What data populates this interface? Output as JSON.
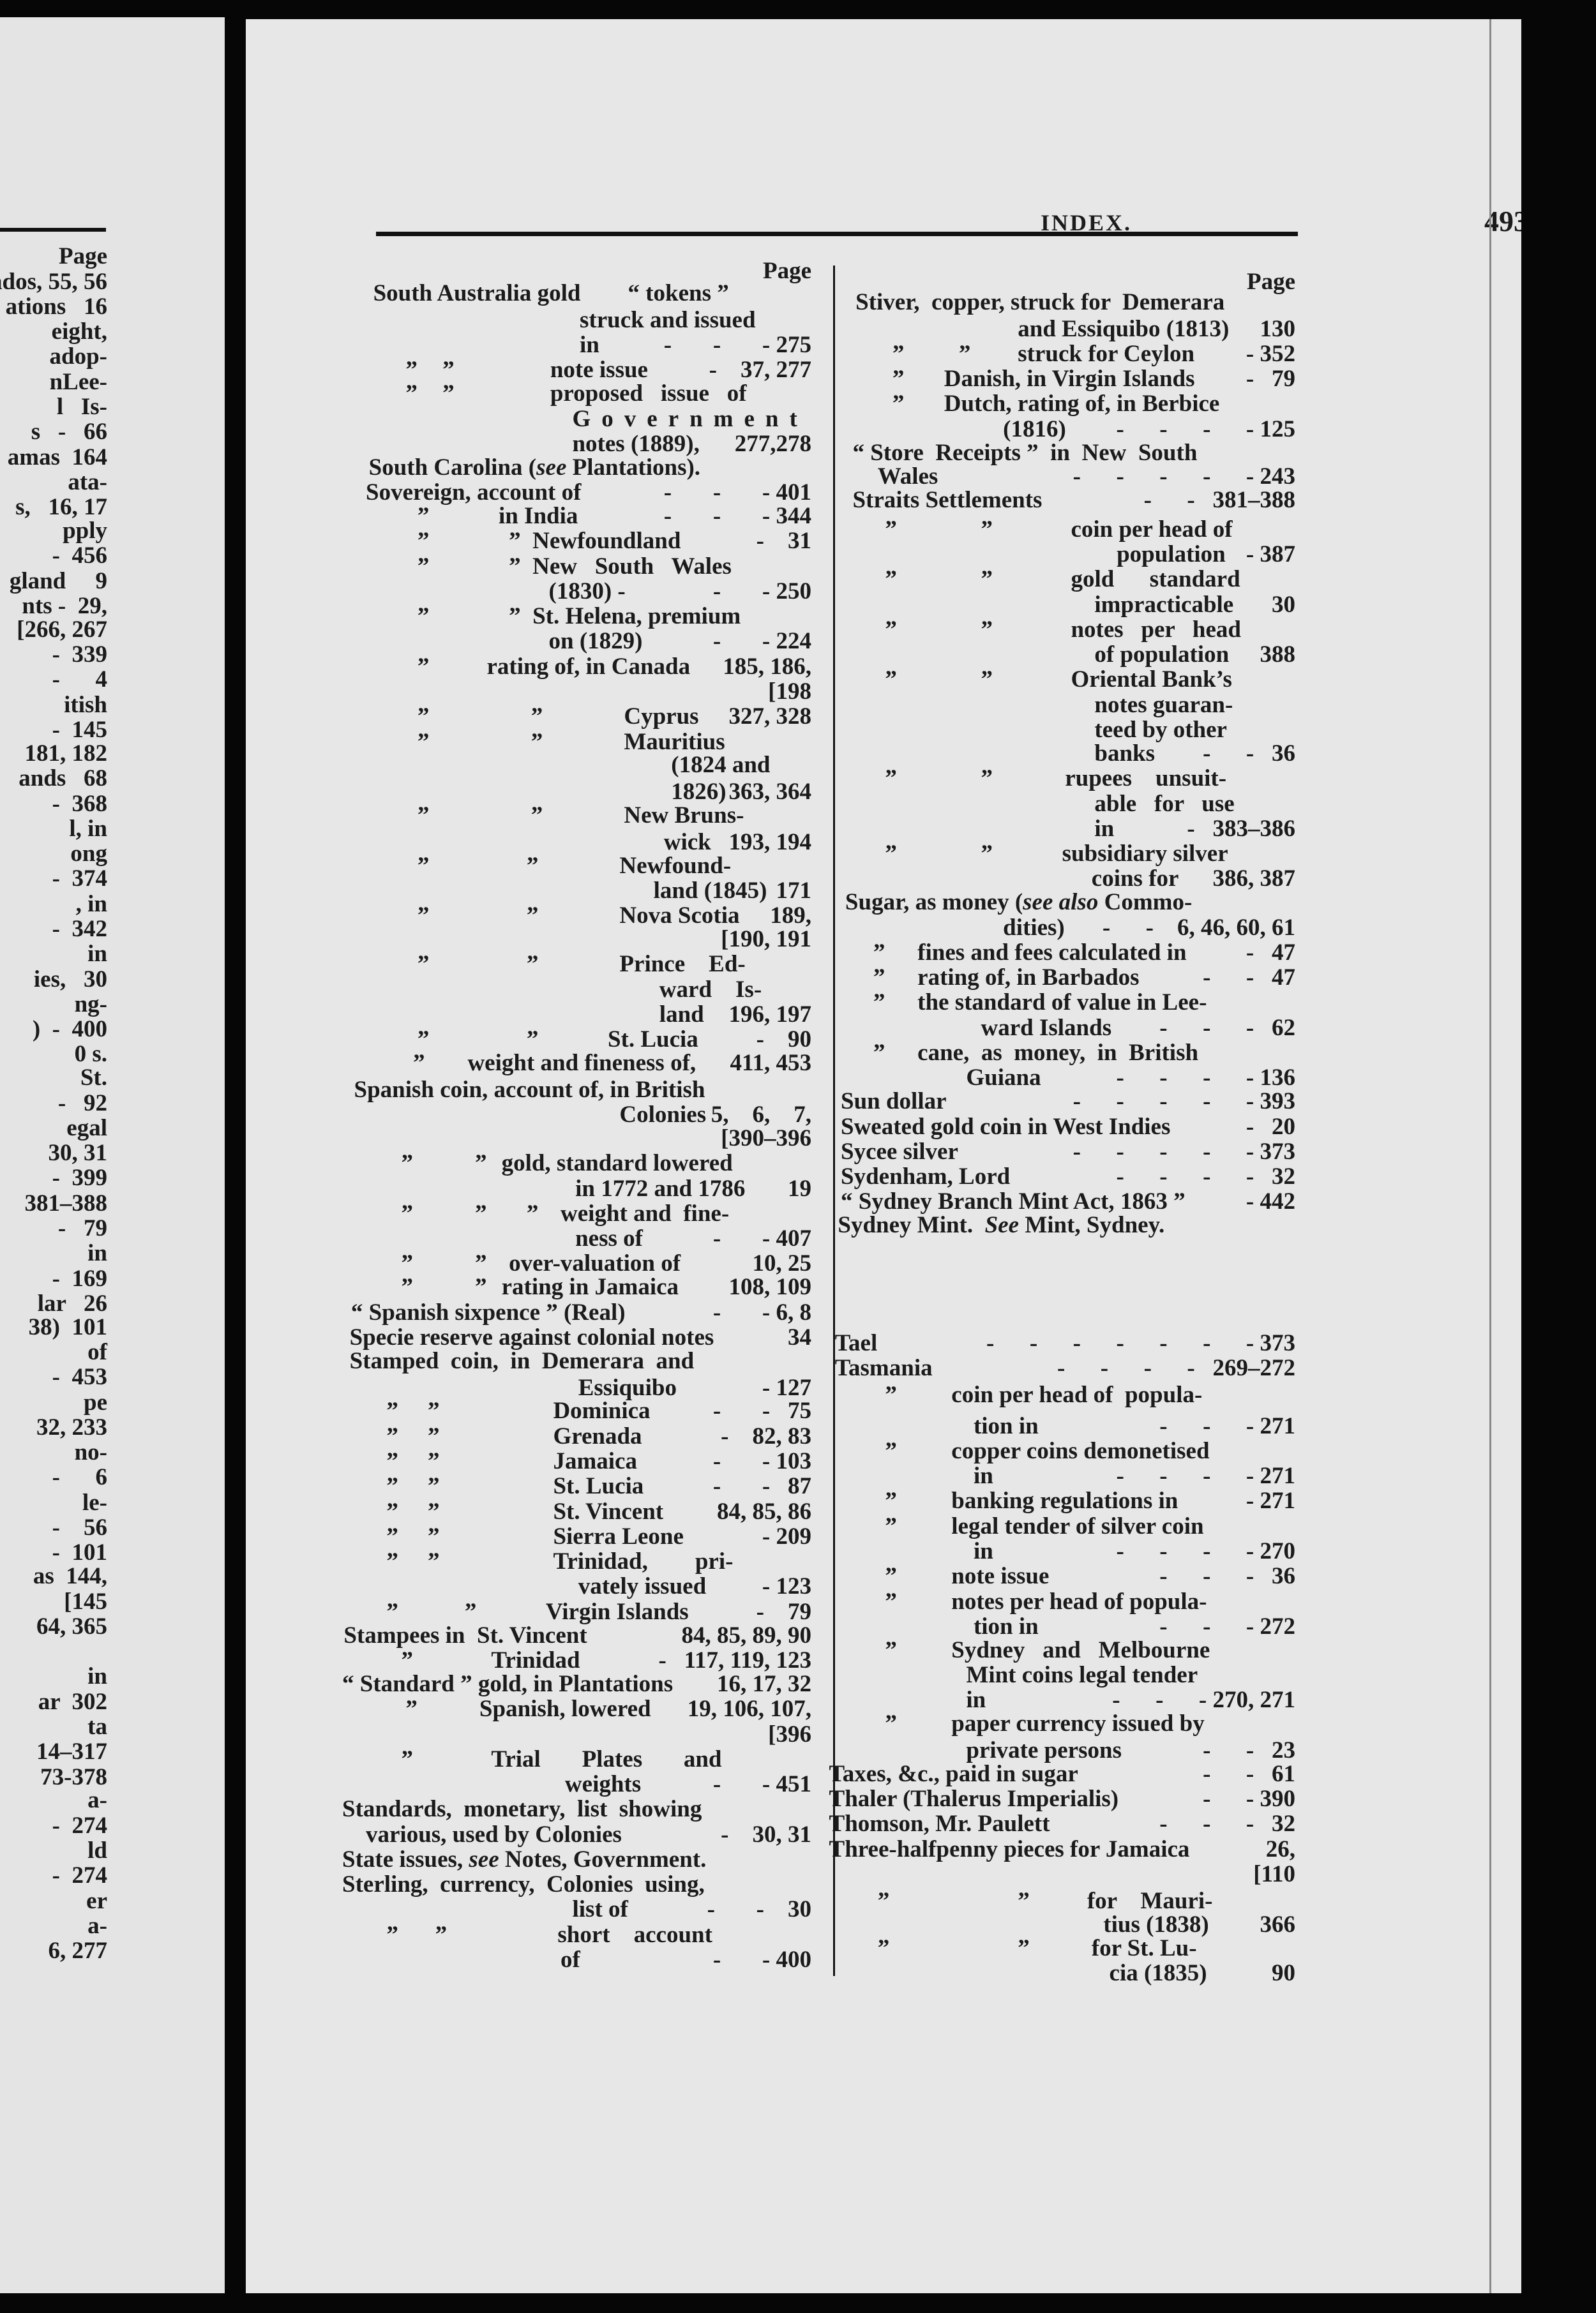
{
  "header": {
    "title": "INDEX.",
    "page_number": "493"
  },
  "left_page_fragment": {
    "lines": [
      "Page",
      "ados, 55, 56",
      "ations   16",
      "eight,",
      "adop-",
      "nLee-",
      "l   Is-",
      "s   -   66",
      "amas  164",
      "ata-",
      "s,   16, 17",
      "pply",
      "-  456",
      "gland     9",
      "nts -  29,",
      "[266, 267",
      "-  339",
      "-      4",
      "itish",
      "-  145",
      " 181, 182",
      "ands   68",
      "-  368",
      "l, in",
      "ong",
      "-  374",
      ", in",
      "-  342",
      "in",
      "ies,   30",
      "ng-",
      ")  -  400",
      "0 s.",
      "St.",
      "-   92",
      "egal",
      "30, 31",
      "-  399",
      "381–388",
      "-   79",
      "in",
      "-  169",
      "lar   26",
      "38)  101",
      "of",
      "-  453",
      "pe",
      "32, 233",
      "no-",
      "-      6",
      "le-",
      "-    56",
      "-  101",
      "as  144,",
      "[145",
      "64, 365",
      "in",
      "ar  302",
      "ta",
      "14–317",
      "73-378",
      "a-",
      "-  274",
      "ld",
      "-  274",
      "er",
      "a-",
      "6, 277"
    ]
  },
  "left_column": {
    "lines": [
      {
        "page": "Page"
      },
      {
        "text": "South Australia gold        “ tokens ”"
      },
      {
        "text": "struck and issued"
      },
      {
        "text": "in",
        "page": "-       -       - 275"
      },
      {
        "dittos": [
          "”",
          "”"
        ],
        "text": "note issue",
        "page": "-    37, 277"
      },
      {
        "dittos": [
          "”",
          "”"
        ],
        "text": "proposed   issue   of"
      },
      {
        "text": "Government"
      },
      {
        "text": "notes (1889),",
        "page": "277,278"
      },
      {
        "text": [
          {
            "t": "South Carolina ("
          },
          {
            "t": "see",
            "italic": true
          },
          {
            "t": " Plantations)."
          }
        ]
      },
      {
        "text": "Sovereign, account of",
        "page": "-       -       - 401"
      },
      {
        "dittos": [
          "”"
        ],
        "text": "in India",
        "page": "-       -       - 344"
      },
      {
        "dittos": [
          "”",
          "”"
        ],
        "text": "Newfoundland",
        "page": "-    31"
      },
      {
        "dittos": [
          "”",
          "”"
        ],
        "text": "New   South   Wales"
      },
      {
        "text": "(1830) -",
        "page": "-       - 250"
      },
      {
        "dittos": [
          "”",
          "”"
        ],
        "text": "St. Helena, premium"
      },
      {
        "text": "on (1829)",
        "page": "-       - 224"
      },
      {
        "dittos": [
          "”"
        ],
        "text": "rating of, in Canada",
        "page": "185, 186,"
      },
      {
        "page": "[198"
      },
      {
        "dittos": [
          "”",
          "”"
        ],
        "text": "Cyprus",
        "page": "327, 328"
      },
      {
        "dittos": [
          "”",
          "”"
        ],
        "text": "Mauritius"
      },
      {
        "text": "(1824 and"
      },
      {
        "text": "1826)",
        "page": "363, 364"
      },
      {
        "dittos": [
          "”",
          "”"
        ],
        "text": "New Bruns-"
      },
      {
        "text": "wick",
        "page": "193, 194"
      },
      {
        "dittos": [
          "”",
          "”"
        ],
        "text": "Newfound-"
      },
      {
        "text": "land (1845)",
        "page": "171"
      },
      {
        "dittos": [
          "”",
          "”"
        ],
        "text": "Nova Scotia",
        "page": "189,"
      },
      {
        "page": "[190, 191"
      },
      {
        "dittos": [
          "”",
          "”"
        ],
        "text": "Prince    Ed-"
      },
      {
        "text": "ward    Is-"
      },
      {
        "text": "land",
        "page": "196, 197"
      },
      {
        "dittos": [
          "”",
          "”"
        ],
        "text": "St. Lucia",
        "page": "-    90"
      },
      {
        "dittos": [
          "”"
        ],
        "text": "weight and fineness of,",
        "page": "411, 453"
      },
      {
        "text": "Spanish coin, account of, in British"
      },
      {
        "text": "Colonies",
        "page": "5,    6,    7,"
      },
      {
        "page": "[390–396"
      },
      {
        "dittos": [
          "”",
          "”"
        ],
        "text": "gold, standard lowered"
      },
      {
        "text": "in 1772 and 1786",
        "page": "19"
      },
      {
        "dittos": [
          "”",
          "”",
          "”"
        ],
        "text": "weight and  fine-"
      },
      {
        "text": "ness of",
        "page": "-       - 407"
      },
      {
        "dittos": [
          "”",
          "”"
        ],
        "text": "over-valuation of",
        "page": "10, 25"
      },
      {
        "dittos": [
          "”",
          "”"
        ],
        "text": "rating in Jamaica",
        "page": "108, 109"
      },
      {
        "text": "“ Spanish sixpence ” (Real)",
        "page": "-       - 6, 8"
      },
      {
        "text": "Specie reserve against colonial notes",
        "page": "34"
      },
      {
        "text": "Stamped  coin,  in  Demerara  and"
      },
      {
        "text": "Essiquibo",
        "page": "- 127"
      },
      {
        "dittos": [
          "”",
          "”"
        ],
        "text": "Dominica",
        "page": "-       -   75"
      },
      {
        "dittos": [
          "”",
          "”"
        ],
        "text": "Grenada",
        "page": "-    82, 83"
      },
      {
        "dittos": [
          "”",
          "”"
        ],
        "text": "Jamaica",
        "page": "-       - 103"
      },
      {
        "dittos": [
          "”",
          "”"
        ],
        "text": "St. Lucia",
        "page": "-       -   87"
      },
      {
        "dittos": [
          "”",
          "”"
        ],
        "text": "St. Vincent",
        "page": "84, 85, 86"
      },
      {
        "dittos": [
          "”",
          "”"
        ],
        "text": "Sierra Leone",
        "page": "- 209"
      },
      {
        "dittos": [
          "”",
          "”"
        ],
        "text": "Trinidad,        pri-"
      },
      {
        "text": "vately issued",
        "page": "- 123"
      },
      {
        "dittos": [
          "”",
          "”"
        ],
        "text": "Virgin Islands",
        "page": "-    79"
      },
      {
        "text": "Stampees in  St. Vincent",
        "page": "84, 85, 89, 90"
      },
      {
        "dittos": [
          "”"
        ],
        "text": "Trinidad",
        "page": "-   117, 119, 123"
      },
      {
        "text": "“ Standard ” gold, in Plantations",
        "page": "16, 17, 32"
      },
      {
        "dittos": [
          "”"
        ],
        "text": "Spanish, lowered",
        "page": "19, 106, 107,"
      },
      {
        "page": "[396"
      },
      {
        "dittos": [
          "”"
        ],
        "text": "Trial       Plates       and"
      },
      {
        "text": "weights",
        "page": "-       - 451"
      },
      {
        "text": "Standards,  monetary,  list  showing"
      },
      {
        "text": "various, used by Colonies",
        "page": "-    30, 31"
      },
      {
        "text": [
          {
            "t": "State issues, "
          },
          {
            "t": "see",
            "italic": true
          },
          {
            "t": " Notes, Government."
          }
        ]
      },
      {
        "text": "Sterling,  currency,  Colonies  using,"
      },
      {
        "text": "list of",
        "page": "-       -    30"
      },
      {
        "dittos": [
          "”",
          "”"
        ],
        "text": "short    account"
      },
      {
        "text": "of",
        "page": "-       - 400"
      }
    ]
  },
  "right_column": {
    "lines": [
      {
        "page": "Page"
      },
      {
        "text": "Stiver,  copper, struck for  Demerara"
      },
      {
        "text": "and Essiquibo (1813)",
        "page": "130"
      },
      {
        "dittos": [
          "”",
          "”"
        ],
        "text": "struck for Ceylon",
        "page": "- 352"
      },
      {
        "dittos": [
          "”"
        ],
        "text": "Danish, in Virgin Islands",
        "page": "-   79"
      },
      {
        "dittos": [
          "”"
        ],
        "text": "Dutch, rating of, in Berbice"
      },
      {
        "text": "(1816)",
        "page": "-      -      -      - 125"
      },
      {
        "text": "“ Store  Receipts ”  in  New  South"
      },
      {
        "text": "Wales",
        "page": "-      -      -      -      - 243"
      },
      {
        "text": "Straits Settlements",
        "page": "-      -   381–388"
      },
      {
        "dittos": [
          "”",
          "”"
        ],
        "text": "coin per head of"
      },
      {
        "text": "population",
        "page": "- 387"
      },
      {
        "dittos": [
          "”",
          "”"
        ],
        "text": "gold      standard"
      },
      {
        "text": "impracticable",
        "page": "30"
      },
      {
        "dittos": [
          "”",
          "”"
        ],
        "text": "notes   per   head"
      },
      {
        "text": "of population",
        "page": "388"
      },
      {
        "dittos": [
          "”",
          "”"
        ],
        "text": "Oriental Bank’s"
      },
      {
        "text": "notes guaran-"
      },
      {
        "text": "teed by other"
      },
      {
        "text": "banks",
        "page": "-      -   36"
      },
      {
        "dittos": [
          "”",
          "”"
        ],
        "text": "rupees    unsuit-"
      },
      {
        "text": "able   for   use"
      },
      {
        "text": "in",
        "page": "-   383–386"
      },
      {
        "dittos": [
          "”",
          "”"
        ],
        "text": "subsidiary silver"
      },
      {
        "text": "coins for",
        "page": "386, 387"
      },
      {
        "text": [
          {
            "t": "Sugar, as money ("
          },
          {
            "t": "see also",
            "italic": true
          },
          {
            "t": " Commo-"
          }
        ]
      },
      {
        "text": "dities)",
        "page": "-      -    6, 46, 60, 61"
      },
      {
        "dittos": [
          "”"
        ],
        "text": "fines and fees calculated in",
        "page": "-   47"
      },
      {
        "dittos": [
          "”"
        ],
        "text": "rating of, in Barbados",
        "page": "-      -   47"
      },
      {
        "dittos": [
          "”"
        ],
        "text": "the standard of value in Lee-"
      },
      {
        "text": "ward Islands",
        "page": "-      -      -   62"
      },
      {
        "dittos": [
          "”"
        ],
        "text": "cane,  as  money,  in  British"
      },
      {
        "text": "Guiana",
        "page": "-      -      -      - 136"
      },
      {
        "text": "Sun dollar",
        "page": "-      -      -      -      - 393"
      },
      {
        "text": "Sweated gold coin in West Indies",
        "page": "-   20"
      },
      {
        "text": "Sycee silver",
        "page": "-      -      -      -      - 373"
      },
      {
        "text": "Sydenham, Lord",
        "page": "-      -      -      -   32"
      },
      {
        "text": "“ Sydney Branch Mint Act, 1863 ”",
        "page": "- 442"
      },
      {
        "text": [
          {
            "t": "Sydney Mint.  "
          },
          {
            "t": "See",
            "italic": true
          },
          {
            "t": " Mint, Sydney."
          }
        ]
      },
      {
        "text": "Tael",
        "page": "-      -      -      -      -      -      - 373"
      },
      {
        "text": "Tasmania",
        "page": "-      -      -      -   269–272"
      },
      {
        "dittos": [
          "”"
        ],
        "text": "coin per head of  popula-"
      },
      {
        "text": "tion in",
        "page": "-      -      - 271"
      },
      {
        "dittos": [
          "”"
        ],
        "text": "copper coins demonetised"
      },
      {
        "text": "in",
        "page": "-      -      -      - 271"
      },
      {
        "dittos": [
          "”"
        ],
        "text": "banking regulations in",
        "page": "- 271"
      },
      {
        "dittos": [
          "”"
        ],
        "text": "legal tender of silver coin"
      },
      {
        "text": "in",
        "page": "-      -      -      - 270"
      },
      {
        "dittos": [
          "”"
        ],
        "text": "note issue",
        "page": "-      -      -   36"
      },
      {
        "dittos": [
          "”"
        ],
        "text": "notes per head of popula-"
      },
      {
        "text": "tion in",
        "page": "-      -      - 272"
      },
      {
        "dittos": [
          "”"
        ],
        "text": "Sydney   and   Melbourne"
      },
      {
        "text": "Mint coins legal tender"
      },
      {
        "text": "in",
        "page": "-      -      - 270, 271"
      },
      {
        "dittos": [
          "”"
        ],
        "text": "paper currency issued by"
      },
      {
        "text": "private persons",
        "page": "-      -   23"
      },
      {
        "text": "Taxes, &c., paid in sugar",
        "page": "-      -   61"
      },
      {
        "text": "Thaler (Thalerus Imperialis)",
        "page": "-      - 390"
      },
      {
        "text": "Thomson, Mr. Paulett",
        "page": "-      -      -   32"
      },
      {
        "text": "Three-halfpenny pieces for Jamaica",
        "page": "26,"
      },
      {
        "page": "[110"
      },
      {
        "dittos": [
          "”",
          "”"
        ],
        "text": "for    Mauri-"
      },
      {
        "text": "tius (1838)",
        "page": "366"
      },
      {
        "dittos": [
          "”",
          "”"
        ],
        "text": "for St. Lu-"
      },
      {
        "text": "cia (1835)",
        "page": "90"
      }
    ]
  }
}
